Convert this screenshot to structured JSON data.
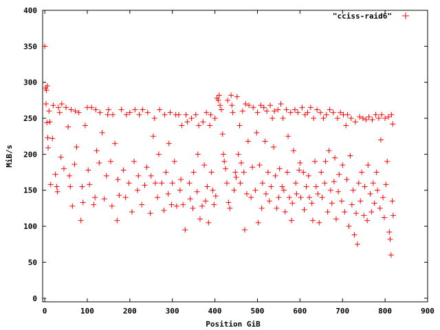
{
  "chart_data": {
    "type": "scatter",
    "title": "",
    "xlabel": "Position GiB",
    "ylabel": "MiB/s",
    "xlim": [
      -5,
      900
    ],
    "ylim": [
      -5,
      400
    ],
    "x_ticks": [
      0,
      100,
      200,
      300,
      400,
      500,
      600,
      700,
      800,
      900
    ],
    "y_ticks": [
      0,
      50,
      100,
      150,
      200,
      250,
      300,
      350,
      400
    ],
    "grid": false,
    "legend_position": "top-right",
    "marker": "plus",
    "color": "#ff0000",
    "series": [
      {
        "name": "\"cciss-raid6\"",
        "points": [
          [
            0,
            350
          ],
          [
            2,
            292
          ],
          [
            4,
            289
          ],
          [
            6,
            295
          ],
          [
            3,
            270
          ],
          [
            5,
            244
          ],
          [
            7,
            223
          ],
          [
            8,
            209
          ],
          [
            10,
            260
          ],
          [
            12,
            245
          ],
          [
            14,
            158
          ],
          [
            18,
            222
          ],
          [
            20,
            268
          ],
          [
            25,
            172
          ],
          [
            28,
            155
          ],
          [
            30,
            148
          ],
          [
            32,
            265
          ],
          [
            35,
            258
          ],
          [
            38,
            196
          ],
          [
            40,
            270
          ],
          [
            45,
            180
          ],
          [
            50,
            265
          ],
          [
            55,
            238
          ],
          [
            58,
            170
          ],
          [
            60,
            155
          ],
          [
            62,
            262
          ],
          [
            65,
            128
          ],
          [
            70,
            186
          ],
          [
            72,
            260
          ],
          [
            75,
            210
          ],
          [
            80,
            258
          ],
          [
            85,
            108
          ],
          [
            88,
            155
          ],
          [
            90,
            133
          ],
          [
            95,
            240
          ],
          [
            100,
            265
          ],
          [
            102,
            178
          ],
          [
            105,
            158
          ],
          [
            110,
            265
          ],
          [
            115,
            130
          ],
          [
            118,
            140
          ],
          [
            120,
            262
          ],
          [
            122,
            205
          ],
          [
            128,
            188
          ],
          [
            130,
            258
          ],
          [
            135,
            230
          ],
          [
            140,
            138
          ],
          [
            145,
            170
          ],
          [
            148,
            255
          ],
          [
            150,
            262
          ],
          [
            155,
            190
          ],
          [
            158,
            128
          ],
          [
            160,
            255
          ],
          [
            165,
            215
          ],
          [
            170,
            108
          ],
          [
            172,
            165
          ],
          [
            175,
            143
          ],
          [
            180,
            262
          ],
          [
            185,
            178
          ],
          [
            190,
            140
          ],
          [
            192,
            255
          ],
          [
            198,
            160
          ],
          [
            200,
            258
          ],
          [
            205,
            120
          ],
          [
            210,
            190
          ],
          [
            212,
            262
          ],
          [
            218,
            150
          ],
          [
            220,
            170
          ],
          [
            222,
            255
          ],
          [
            228,
            130
          ],
          [
            230,
            262
          ],
          [
            235,
            157
          ],
          [
            240,
            182
          ],
          [
            242,
            258
          ],
          [
            248,
            118
          ],
          [
            250,
            170
          ],
          [
            255,
            225
          ],
          [
            258,
            250
          ],
          [
            260,
            160
          ],
          [
            265,
            140
          ],
          [
            268,
            200
          ],
          [
            270,
            262
          ],
          [
            275,
            160
          ],
          [
            280,
            122
          ],
          [
            282,
            255
          ],
          [
            285,
            175
          ],
          [
            290,
            145
          ],
          [
            292,
            215
          ],
          [
            295,
            258
          ],
          [
            298,
            130
          ],
          [
            300,
            160
          ],
          [
            305,
            190
          ],
          [
            308,
            255
          ],
          [
            310,
            128
          ],
          [
            315,
            255
          ],
          [
            318,
            150
          ],
          [
            320,
            165
          ],
          [
            322,
            240
          ],
          [
            325,
            130
          ],
          [
            330,
            95
          ],
          [
            332,
            255
          ],
          [
            335,
            245
          ],
          [
            340,
            160
          ],
          [
            342,
            138
          ],
          [
            345,
            250
          ],
          [
            348,
            125
          ],
          [
            350,
            175
          ],
          [
            355,
            255
          ],
          [
            358,
            148
          ],
          [
            360,
            200
          ],
          [
            362,
            240
          ],
          [
            365,
            110
          ],
          [
            370,
            128
          ],
          [
            372,
            245
          ],
          [
            375,
            185
          ],
          [
            378,
            135
          ],
          [
            380,
            258
          ],
          [
            382,
            155
          ],
          [
            385,
            105
          ],
          [
            388,
            240
          ],
          [
            390,
            255
          ],
          [
            392,
            175
          ],
          [
            395,
            150
          ],
          [
            398,
            130
          ],
          [
            400,
            250
          ],
          [
            402,
            142
          ],
          [
            405,
            278
          ],
          [
            408,
            275
          ],
          [
            410,
            282
          ],
          [
            412,
            268
          ],
          [
            415,
            262
          ],
          [
            418,
            228
          ],
          [
            420,
            200
          ],
          [
            422,
            190
          ],
          [
            425,
            180
          ],
          [
            428,
            160
          ],
          [
            430,
            275
          ],
          [
            432,
            133
          ],
          [
            435,
            125
          ],
          [
            438,
            282
          ],
          [
            440,
            268
          ],
          [
            442,
            258
          ],
          [
            445,
            150
          ],
          [
            448,
            175
          ],
          [
            450,
            168
          ],
          [
            452,
            280
          ],
          [
            455,
            200
          ],
          [
            458,
            240
          ],
          [
            460,
            160
          ],
          [
            462,
            188
          ],
          [
            465,
            260
          ],
          [
            468,
            175
          ],
          [
            470,
            95
          ],
          [
            472,
            270
          ],
          [
            475,
            145
          ],
          [
            478,
            218
          ],
          [
            480,
            268
          ],
          [
            485,
            140
          ],
          [
            488,
            182
          ],
          [
            490,
            265
          ],
          [
            495,
            150
          ],
          [
            498,
            230
          ],
          [
            500,
            258
          ],
          [
            502,
            105
          ],
          [
            505,
            185
          ],
          [
            508,
            268
          ],
          [
            510,
            125
          ],
          [
            512,
            160
          ],
          [
            515,
            265
          ],
          [
            518,
            218
          ],
          [
            520,
            145
          ],
          [
            522,
            260
          ],
          [
            525,
            175
          ],
          [
            528,
            135
          ],
          [
            530,
            268
          ],
          [
            532,
            155
          ],
          [
            535,
            250
          ],
          [
            538,
            210
          ],
          [
            540,
            260
          ],
          [
            542,
            170
          ],
          [
            545,
            125
          ],
          [
            548,
            262
          ],
          [
            550,
            140
          ],
          [
            552,
            180
          ],
          [
            555,
            270
          ],
          [
            558,
            155
          ],
          [
            560,
            250
          ],
          [
            562,
            150
          ],
          [
            565,
            120
          ],
          [
            568,
            262
          ],
          [
            570,
            175
          ],
          [
            572,
            225
          ],
          [
            575,
            140
          ],
          [
            578,
            258
          ],
          [
            580,
            108
          ],
          [
            582,
            132
          ],
          [
            585,
            205
          ],
          [
            588,
            262
          ],
          [
            590,
            160
          ],
          [
            592,
            145
          ],
          [
            595,
            258
          ],
          [
            598,
            178
          ],
          [
            600,
            188
          ],
          [
            602,
            140
          ],
          [
            605,
            265
          ],
          [
            608,
            175
          ],
          [
            610,
            123
          ],
          [
            612,
            255
          ],
          [
            615,
            155
          ],
          [
            618,
            258
          ],
          [
            620,
            170
          ],
          [
            622,
            140
          ],
          [
            625,
            265
          ],
          [
            628,
            132
          ],
          [
            630,
            108
          ],
          [
            632,
            250
          ],
          [
            635,
            190
          ],
          [
            638,
            155
          ],
          [
            640,
            262
          ],
          [
            642,
            145
          ],
          [
            645,
            105
          ],
          [
            648,
            258
          ],
          [
            650,
            175
          ],
          [
            652,
            140
          ],
          [
            655,
            250
          ],
          [
            658,
            160
          ],
          [
            660,
            190
          ],
          [
            662,
            255
          ],
          [
            665,
            120
          ],
          [
            668,
            205
          ],
          [
            670,
            262
          ],
          [
            672,
            150
          ],
          [
            675,
            132
          ],
          [
            678,
            258
          ],
          [
            680,
            162
          ],
          [
            682,
            195
          ],
          [
            685,
            110
          ],
          [
            688,
            250
          ],
          [
            690,
            148
          ],
          [
            692,
            172
          ],
          [
            695,
            258
          ],
          [
            698,
            135
          ],
          [
            700,
            185
          ],
          [
            702,
            255
          ],
          [
            705,
            120
          ],
          [
            708,
            240
          ],
          [
            710,
            165
          ],
          [
            712,
            255
          ],
          [
            715,
            100
          ],
          [
            718,
            198
          ],
          [
            720,
            250
          ],
          [
            722,
            130
          ],
          [
            725,
            150
          ],
          [
            728,
            88
          ],
          [
            730,
            245
          ],
          [
            732,
            118
          ],
          [
            735,
            75
          ],
          [
            738,
            160
          ],
          [
            740,
            252
          ],
          [
            742,
            135
          ],
          [
            745,
            175
          ],
          [
            748,
            250
          ],
          [
            750,
            115
          ],
          [
            752,
            155
          ],
          [
            755,
            248
          ],
          [
            758,
            108
          ],
          [
            760,
            185
          ],
          [
            762,
            252
          ],
          [
            765,
            145
          ],
          [
            768,
            120
          ],
          [
            770,
            248
          ],
          [
            772,
            160
          ],
          [
            775,
            132
          ],
          [
            778,
            255
          ],
          [
            780,
            175
          ],
          [
            782,
            150
          ],
          [
            785,
            250
          ],
          [
            788,
            125
          ],
          [
            790,
            220
          ],
          [
            792,
            255
          ],
          [
            795,
            140
          ],
          [
            798,
            112
          ],
          [
            800,
            250
          ],
          [
            802,
            158
          ],
          [
            805,
            190
          ],
          [
            808,
            252
          ],
          [
            810,
            92
          ],
          [
            812,
            82
          ],
          [
            814,
            60
          ],
          [
            815,
            255
          ],
          [
            817,
            135
          ],
          [
            818,
            242
          ],
          [
            819,
            115
          ]
        ]
      }
    ]
  }
}
